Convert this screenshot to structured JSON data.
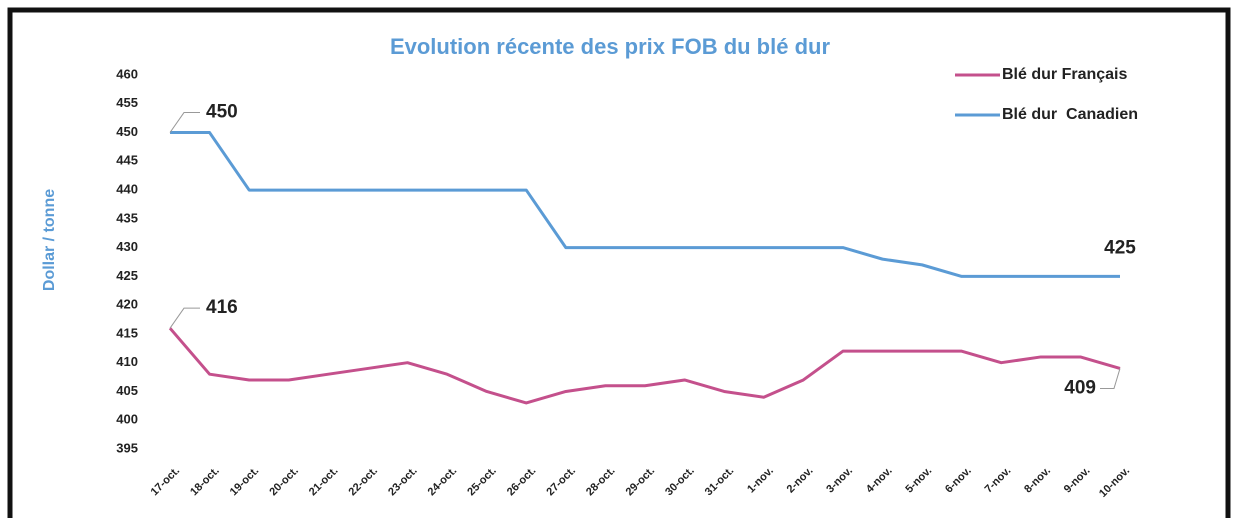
{
  "chart_data": {
    "type": "line",
    "title": "Evolution récente des prix FOB du blé dur",
    "y_label": "Dollar / tonne",
    "categories": [
      "17-oct.",
      "18-oct.",
      "19-oct.",
      "20-oct.",
      "21-oct.",
      "22-oct.",
      "23-oct.",
      "24-oct.",
      "25-oct.",
      "26-oct.",
      "27-oct.",
      "28-oct.",
      "29-oct.",
      "30-oct.",
      "31-oct.",
      "1-nov.",
      "2-nov.",
      "3-nov.",
      "4-nov.",
      "5-nov.",
      "6-nov.",
      "7-nov.",
      "8-nov.",
      "9-nov.",
      "10-nov."
    ],
    "series": [
      {
        "name": "Blé dur Français",
        "color": "#c4508c",
        "values": [
          416,
          408,
          407,
          407,
          408,
          409,
          410,
          408,
          405,
          403,
          405,
          406,
          406,
          407,
          405,
          404,
          407,
          412,
          412,
          412,
          412,
          410,
          411,
          411,
          409
        ]
      },
      {
        "name": "Blé dur  Canadien",
        "color": "#5b9bd5",
        "values": [
          450,
          450,
          440,
          440,
          440,
          440,
          440,
          440,
          440,
          440,
          430,
          430,
          430,
          430,
          430,
          430,
          430,
          430,
          428,
          427,
          425,
          425,
          425,
          425,
          425
        ]
      }
    ],
    "ylim": [
      395,
      460
    ],
    "yticks": [
      395,
      400,
      405,
      410,
      415,
      420,
      425,
      430,
      435,
      440,
      445,
      450,
      455,
      460
    ],
    "legend": "top-right"
  }
}
